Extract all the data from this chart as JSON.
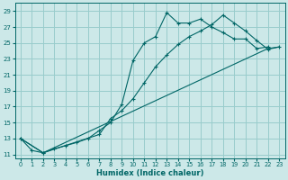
{
  "xlabel": "Humidex (Indice chaleur)",
  "bg_color": "#cce8e8",
  "grid_color": "#99cccc",
  "line_color": "#006666",
  "xlim": [
    -0.5,
    23.5
  ],
  "ylim": [
    10.5,
    30
  ],
  "xticks": [
    0,
    1,
    2,
    3,
    4,
    5,
    6,
    7,
    8,
    9,
    10,
    11,
    12,
    13,
    14,
    15,
    16,
    17,
    18,
    19,
    20,
    21,
    22,
    23
  ],
  "yticks": [
    11,
    13,
    15,
    17,
    19,
    21,
    23,
    25,
    27,
    29
  ],
  "line1_zigzag": [
    [
      0,
      13
    ],
    [
      1,
      11.5
    ],
    [
      2,
      11.2
    ],
    [
      3,
      11.7
    ],
    [
      4,
      12.1
    ],
    [
      5,
      12.5
    ],
    [
      6,
      13.0
    ],
    [
      7,
      14.0
    ],
    [
      8,
      15.0
    ],
    [
      9,
      17.3
    ],
    [
      10,
      22.8
    ],
    [
      11,
      25.0
    ],
    [
      12,
      25.8
    ],
    [
      13,
      28.8
    ],
    [
      14,
      27.5
    ],
    [
      15,
      27.5
    ],
    [
      16,
      28.0
    ],
    [
      17,
      27.0
    ],
    [
      18,
      26.3
    ],
    [
      19,
      25.5
    ],
    [
      20,
      25.5
    ],
    [
      21,
      24.3
    ],
    [
      22,
      24.5
    ]
  ],
  "line2_straight": [
    [
      0,
      13
    ],
    [
      2,
      11.2
    ],
    [
      22,
      24.3
    ],
    [
      23,
      24.5
    ]
  ],
  "line3_medium": [
    [
      0,
      13
    ],
    [
      2,
      11.2
    ],
    [
      7,
      13.5
    ],
    [
      8,
      15.5
    ],
    [
      9,
      16.5
    ],
    [
      10,
      18.0
    ],
    [
      11,
      20.0
    ],
    [
      12,
      22.0
    ],
    [
      13,
      23.5
    ],
    [
      14,
      24.8
    ],
    [
      15,
      25.8
    ],
    [
      16,
      26.5
    ],
    [
      17,
      27.3
    ],
    [
      18,
      28.5
    ],
    [
      19,
      27.5
    ],
    [
      20,
      26.5
    ],
    [
      21,
      25.3
    ],
    [
      22,
      24.2
    ],
    [
      23,
      24.5
    ]
  ]
}
